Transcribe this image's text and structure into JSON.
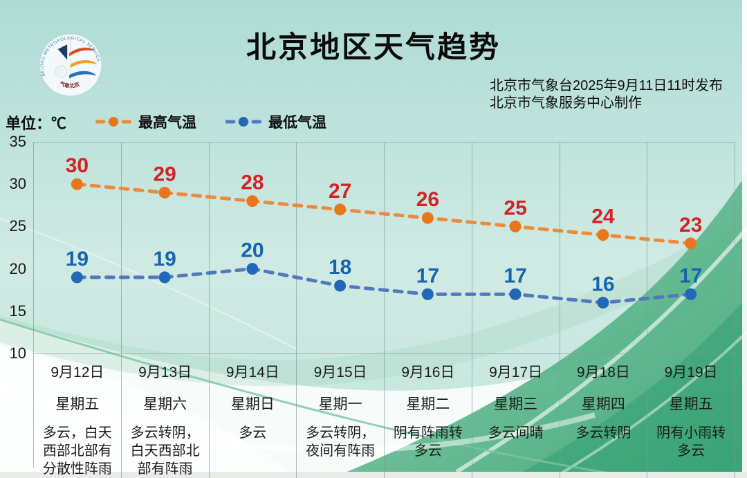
{
  "header": {
    "title": "北京地区天气趋势",
    "publisher_line1": "北京市气象台2025年9月11日11时发布",
    "publisher_line2": "北京市气象服务中心制作",
    "logo": {
      "ring_text": "BEIJING METEOROLOGICAL SERVICE",
      "bottom_text": "气象北京"
    }
  },
  "chart_data": {
    "type": "line",
    "title": "北京地区天气趋势",
    "unit_label": "单位：℃",
    "ylim": [
      10,
      35
    ],
    "y_ticks": [
      35,
      30,
      25,
      20,
      15,
      10
    ],
    "grid": "vertical-column-separators-only",
    "legend_position": "top-left",
    "categories": [
      "9月12日",
      "9月13日",
      "9月14日",
      "9月15日",
      "9月16日",
      "9月17日",
      "9月18日",
      "9月19日"
    ],
    "weekdays": [
      "星期五",
      "星期六",
      "星期日",
      "星期一",
      "星期二",
      "星期三",
      "星期四",
      "星期五"
    ],
    "weather": [
      "多云，白天西部北部有分散性阵雨",
      "多云转阴，白天西部北部有阵雨",
      "多云",
      "多云转阴，夜间有阵雨",
      "阴有阵雨转多云",
      "多云间晴",
      "多云转阴",
      "阴有小雨转多云"
    ],
    "series": [
      {
        "key": "high",
        "name": "最高气温",
        "values": [
          30,
          29,
          28,
          27,
          26,
          25,
          24,
          23
        ],
        "line_color": "#ee8a3c",
        "dot_color": "#e8771c",
        "label_color": "#d22327"
      },
      {
        "key": "low",
        "name": "最低气温",
        "values": [
          19,
          19,
          20,
          18,
          17,
          17,
          16,
          17
        ],
        "line_color": "#5379bd",
        "dot_color": "#2268b6",
        "label_color": "#1565af"
      }
    ],
    "background_accent_colors": [
      "#aedcd5",
      "#5cb98c",
      "#2e9e70",
      "#ffffff"
    ]
  }
}
